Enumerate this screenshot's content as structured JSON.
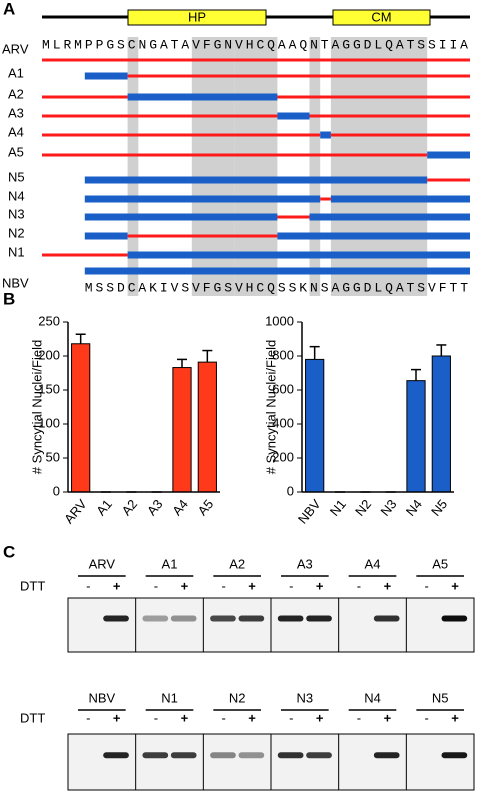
{
  "panel_labels": [
    "A",
    "B",
    "C"
  ],
  "panel_a": {
    "domains": [
      "HP",
      "CM"
    ],
    "sequences": {
      "arv": "MLRMPPGSCNGATAVFGNVHCQAAQNTAGGDLQATSSIIA",
      "nbv": "MSSDCAKIVSVFGSVHCQSSKNSAGGDLQATSVFTT"
    },
    "rows": [
      "ARV",
      "A1",
      "A2",
      "A3",
      "A4",
      "A5",
      "N5",
      "N4",
      "N3",
      "N2",
      "N1",
      "NBV"
    ]
  },
  "chart_data": [
    {
      "type": "bar",
      "y_label": "# Syncytial Nuclei/Field",
      "categories": [
        "ARV",
        "A1",
        "A2",
        "A3",
        "A4",
        "A5"
      ],
      "values": [
        218,
        0,
        0,
        0,
        183,
        191
      ],
      "errors": [
        14,
        0,
        0,
        0,
        12,
        17
      ],
      "color": "#ff3a1a",
      "ylim": [
        0,
        250
      ],
      "yticks": [
        0,
        50,
        100,
        150,
        200,
        250
      ]
    },
    {
      "type": "bar",
      "y_label": "# Syncytial Nuclei/Field",
      "categories": [
        "NBV",
        "N1",
        "N2",
        "N3",
        "N4",
        "N5"
      ],
      "values": [
        780,
        0,
        0,
        0,
        655,
        800
      ],
      "errors": [
        75,
        0,
        0,
        0,
        65,
        65
      ],
      "color": "#1a5fc8",
      "ylim": [
        0,
        1000
      ],
      "yticks": [
        0,
        200,
        400,
        600,
        800,
        1000
      ]
    }
  ],
  "panel_c": {
    "treatment": "DTT",
    "minus": "-",
    "plus": "+",
    "gels": [
      [
        "ARV",
        "A1",
        "A2",
        "A3",
        "A4",
        "A5"
      ],
      [
        "NBV",
        "N1",
        "N2",
        "N3",
        "N4",
        "N5"
      ]
    ]
  }
}
